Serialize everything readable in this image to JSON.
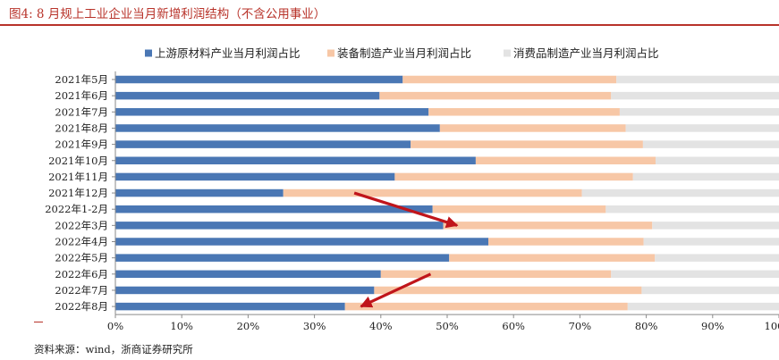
{
  "header": {
    "title": "图4:  8 月规上工业企业当月新增利润结构（不含公用事业）"
  },
  "footer": {
    "source": "资料来源：wind，浙商证券研究所"
  },
  "colors": {
    "upstream": "#4a77b4",
    "equipment": "#f7c7a6",
    "consumer": "#e3e3e3",
    "arrow": "#c0151b",
    "title": "#b8332a"
  },
  "chart_data": {
    "type": "bar",
    "orientation": "horizontal",
    "stacked": true,
    "percent": true,
    "categories": [
      "2021年5月",
      "2021年6月",
      "2021年7月",
      "2021年8月",
      "2021年9月",
      "2021年10月",
      "2021年11月",
      "2021年12月",
      "2022年1-2月",
      "2022年3月",
      "2022年4月",
      "2022年5月",
      "2022年6月",
      "2022年7月",
      "2022年8月"
    ],
    "series": [
      {
        "name": "上游原材料产业当月利润占比",
        "color": "#4a77b4",
        "values": [
          43.3,
          39.8,
          47.2,
          48.9,
          44.5,
          54.3,
          42.1,
          25.3,
          47.8,
          49.4,
          56.2,
          50.3,
          40.0,
          39.0,
          34.6
        ]
      },
      {
        "name": "装备制造产业当月利润占比",
        "color": "#f7c7a6",
        "values": [
          32.2,
          34.9,
          28.8,
          28.0,
          35.0,
          27.1,
          35.9,
          45.0,
          26.1,
          31.5,
          23.4,
          31.0,
          34.7,
          40.3,
          42.6
        ]
      },
      {
        "name": "消费品制造产业当月利润占比",
        "color": "#e3e3e3",
        "values": [
          24.5,
          25.3,
          24.0,
          23.1,
          20.5,
          18.6,
          22.0,
          29.7,
          26.1,
          19.1,
          20.4,
          18.7,
          25.3,
          20.7,
          22.8
        ]
      }
    ],
    "x_ticks": [
      "0%",
      "10%",
      "20%",
      "30%",
      "40%",
      "50%",
      "60%",
      "70%",
      "80%",
      "90%",
      "100%"
    ],
    "xlim": [
      0,
      100
    ],
    "grid": false,
    "legend": "top",
    "annotations": [
      {
        "type": "arrow",
        "from": {
          "category": "2021年12月",
          "x": 36
        },
        "to": {
          "category": "2022年3月",
          "x": 51.5
        }
      },
      {
        "type": "arrow",
        "from": {
          "category": "2022年6月",
          "x": 47.5
        },
        "to": {
          "category": "2022年8月",
          "x": 37
        }
      }
    ]
  }
}
